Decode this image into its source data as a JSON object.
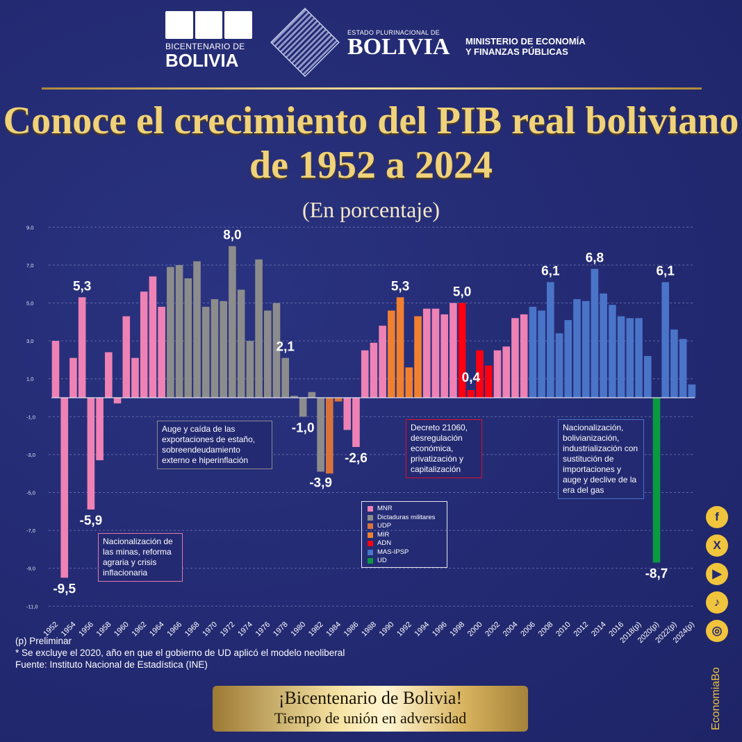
{
  "header": {
    "bicentenario_sub": "BICENTENARIO DE",
    "bicentenario_main": "BOLIVIA",
    "estado_sub": "ESTADO PLURINACIONAL DE",
    "estado_main": "BOLIVIA",
    "ministerio_line1": "MINISTERIO DE ECONOMÍA",
    "ministerio_line2": "Y FINANZAS PÚBLICAS"
  },
  "legend": [
    {
      "code": "MNR",
      "label": "MNR",
      "color": "#ee82b4"
    },
    {
      "code": "DM",
      "label": "Dictaduras militares",
      "color": "#8c8c8c"
    },
    {
      "code": "UDP",
      "label": "UDP",
      "color": "#d8733a"
    },
    {
      "code": "MIR",
      "label": "MIR",
      "color": "#f08030"
    },
    {
      "code": "ADN",
      "label": "ADN",
      "color": "#ff0010"
    },
    {
      "code": "MAS",
      "label": "MAS-IPSP",
      "color": "#4a74c8"
    },
    {
      "code": "UD",
      "label": "UD",
      "color": "#0a9a40"
    }
  ],
  "notes": [
    "Nacionalización de las minas, reforma agraria y crisis inflacionaria",
    "Auge y caída de las exportaciones de estaño, sobreendeudamiento externo e hiperinflación",
    "Decreto 21060, desregulación económica, privatización y capitalización",
    "Nacionalización, bolivianización, industrialización con sustitución de importaciones y auge y declive de la era del gas"
  ],
  "footnotes": {
    "p": "(p) Preliminar",
    "excl": "* Se excluye el 2020, año en que el gobierno de UD aplicó el modelo neoliberal",
    "source": "Fuente: Instituto Nacional de Estadística (INE)"
  },
  "social": {
    "icons": [
      "facebook-icon",
      "x-icon",
      "youtube-icon",
      "tiktok-icon",
      "instagram-icon"
    ],
    "handle": "EconomiaBo"
  },
  "banner": {
    "line1": "¡Bicentenario de Bolivia!",
    "line2": "Tiempo de unión en adversidad"
  },
  "chart_data": {
    "type": "bar",
    "title": "Conoce el crecimiento del PIB real boliviano de 1952 a 2024",
    "subtitle": "(En porcentaje)",
    "ylim": [
      -11,
      9
    ],
    "yticks": [
      "9,0",
      "7,0",
      "5,0",
      "3,0",
      "1,0",
      "-1,0",
      "-3,0",
      "-5,0",
      "-7,0",
      "-9,0",
      "-11,0"
    ],
    "ytick_values": [
      9,
      7,
      5,
      3,
      1,
      -1,
      -3,
      -5,
      -7,
      -9,
      -11
    ],
    "x_start": 1952,
    "xtick_labels": [
      "1952",
      "1954",
      "1956",
      "1958",
      "1960",
      "1962",
      "1964",
      "1966",
      "1968",
      "1970",
      "1972",
      "1974",
      "1976",
      "1978",
      "1980",
      "1982",
      "1984",
      "1986",
      "1988",
      "1990",
      "1992",
      "1994",
      "1996",
      "1998",
      "2000",
      "2002",
      "2004",
      "2006",
      "2008",
      "2010",
      "2012",
      "2014",
      "2016",
      "2018(p)",
      "2020(p)",
      "2022(p)",
      "2024(p)"
    ],
    "values": [
      3.0,
      -9.5,
      2.1,
      5.3,
      -5.9,
      -3.3,
      2.4,
      -0.3,
      4.3,
      2.1,
      5.6,
      6.4,
      4.8,
      6.9,
      7.0,
      6.3,
      7.2,
      4.8,
      5.2,
      5.1,
      8.0,
      5.7,
      3.0,
      7.3,
      4.6,
      5.0,
      2.1,
      0.1,
      -1.0,
      0.3,
      -3.9,
      -4.0,
      -0.2,
      -1.7,
      -2.6,
      2.5,
      2.9,
      3.8,
      4.6,
      5.3,
      1.6,
      4.3,
      4.7,
      4.7,
      4.4,
      5.0,
      5.0,
      0.4,
      2.5,
      1.7,
      2.5,
      2.7,
      4.2,
      4.4,
      4.8,
      4.6,
      6.1,
      3.4,
      4.1,
      5.2,
      5.1,
      6.8,
      5.5,
      4.9,
      4.3,
      4.2,
      4.2,
      2.2,
      -8.7,
      6.1,
      3.6,
      3.1,
      0.7
    ],
    "party_segments": [
      {
        "party": "MNR",
        "from": 1952,
        "to": 1964
      },
      {
        "party": "DM",
        "from": 1965,
        "to": 1982
      },
      {
        "party": "UDP",
        "from": 1983,
        "to": 1984
      },
      {
        "party": "MNR",
        "from": 1985,
        "to": 1989
      },
      {
        "party": "MIR",
        "from": 1990,
        "to": 1993
      },
      {
        "party": "MNR",
        "from": 1994,
        "to": 1997
      },
      {
        "party": "ADN",
        "from": 1998,
        "to": 2001
      },
      {
        "party": "MNR",
        "from": 2002,
        "to": 2005
      },
      {
        "party": "MAS",
        "from": 2006,
        "to": 2019
      },
      {
        "party": "UD",
        "from": 2020,
        "to": 2020
      },
      {
        "party": "MAS",
        "from": 2021,
        "to": 2024
      }
    ],
    "data_labels": [
      {
        "year": 1953,
        "text": "-9,5"
      },
      {
        "year": 1955,
        "text": "5,3"
      },
      {
        "year": 1956,
        "text": "-5,9"
      },
      {
        "year": 1972,
        "text": "8,0"
      },
      {
        "year": 1978,
        "text": "2,1"
      },
      {
        "year": 1980,
        "text": "-1,0"
      },
      {
        "year": 1982,
        "text": "-3,9"
      },
      {
        "year": 1986,
        "text": "-2,6"
      },
      {
        "year": 1991,
        "text": "5,3"
      },
      {
        "year": 1998,
        "text": "5,0"
      },
      {
        "year": 1999,
        "text": "0,4"
      },
      {
        "year": 2008,
        "text": "6,1"
      },
      {
        "year": 2013,
        "text": "6,8"
      },
      {
        "year": 2020,
        "text": "-8,7"
      },
      {
        "year": 2021,
        "text": "6,1"
      }
    ]
  }
}
